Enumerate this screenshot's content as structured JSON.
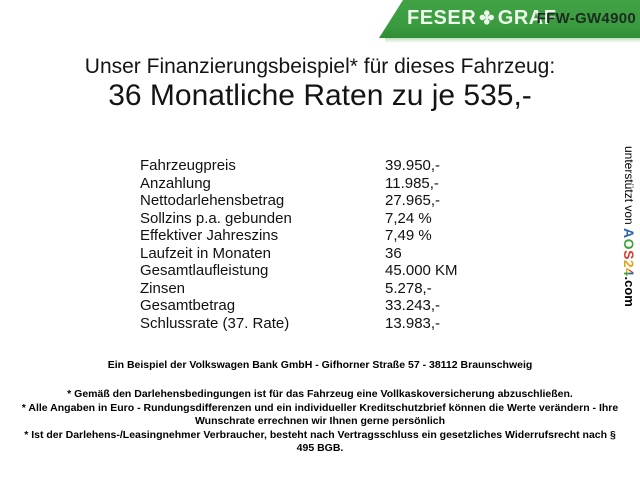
{
  "banner": {
    "brand_left": "FESER",
    "clover_icon": "✤",
    "brand_right": "GRAF",
    "vehicle_code": "FFW-GW4900",
    "green": "#3a9a3f"
  },
  "heading": {
    "line1": "Unser Finanzierungsbeispiel* für dieses Fahrzeug:",
    "line2": "36 Monatliche Raten zu je 535,-"
  },
  "finance_table": {
    "rows": [
      {
        "label": "Fahrzeugpreis",
        "value": "39.950,-"
      },
      {
        "label": "Anzahlung",
        "value": "11.985,-"
      },
      {
        "label": "Nettodarlehensbetrag",
        "value": "27.965,-"
      },
      {
        "label": "Sollzins p.a. gebunden",
        "value": "7,24 %"
      },
      {
        "label": "Effektiver Jahreszins",
        "value": "7,49 %"
      },
      {
        "label": "Laufzeit in Monaten",
        "value": "36"
      },
      {
        "label": "Gesamtlaufleistung",
        "value": "45.000 KM"
      },
      {
        "label": "Zinsen",
        "value": "5.278,-"
      },
      {
        "label": "Gesamtbetrag",
        "value": "33.243,-"
      },
      {
        "label": "Schlussrate (37. Rate)",
        "value": "13.983,-"
      }
    ]
  },
  "side_credit": {
    "prefix": "unterstützt von ",
    "logo": {
      "letters": [
        {
          "char": "A",
          "color": "#2b62b5"
        },
        {
          "char": "O",
          "color": "#3da23a"
        },
        {
          "char": "S",
          "color": "#d93a31"
        },
        {
          "char": "2",
          "color": "#dfa41f"
        },
        {
          "char": "4",
          "color": "#d93a31"
        }
      ],
      "suffix": ".com"
    }
  },
  "footer": {
    "bank_line": "Ein Beispiel der Volkswagen Bank GmbH - Gifhorner Straße 57 - 38112 Braunschweig",
    "notes": [
      "* Gemäß den Darlehensbedingungen ist für das Fahrzeug eine Vollkaskoversicherung abzuschließen.",
      "* Alle Angaben in Euro - Rundungsdifferenzen und ein individueller Kreditschutzbrief können die Werte verändern - Ihre Wunschrate errechnen wir Ihnen gerne persönlich",
      "* Ist der Darlehens-/Leasingnehmer Verbraucher, besteht nach Vertragsschluss ein gesetzliches Widerrufsrecht nach § 495 BGB."
    ]
  }
}
